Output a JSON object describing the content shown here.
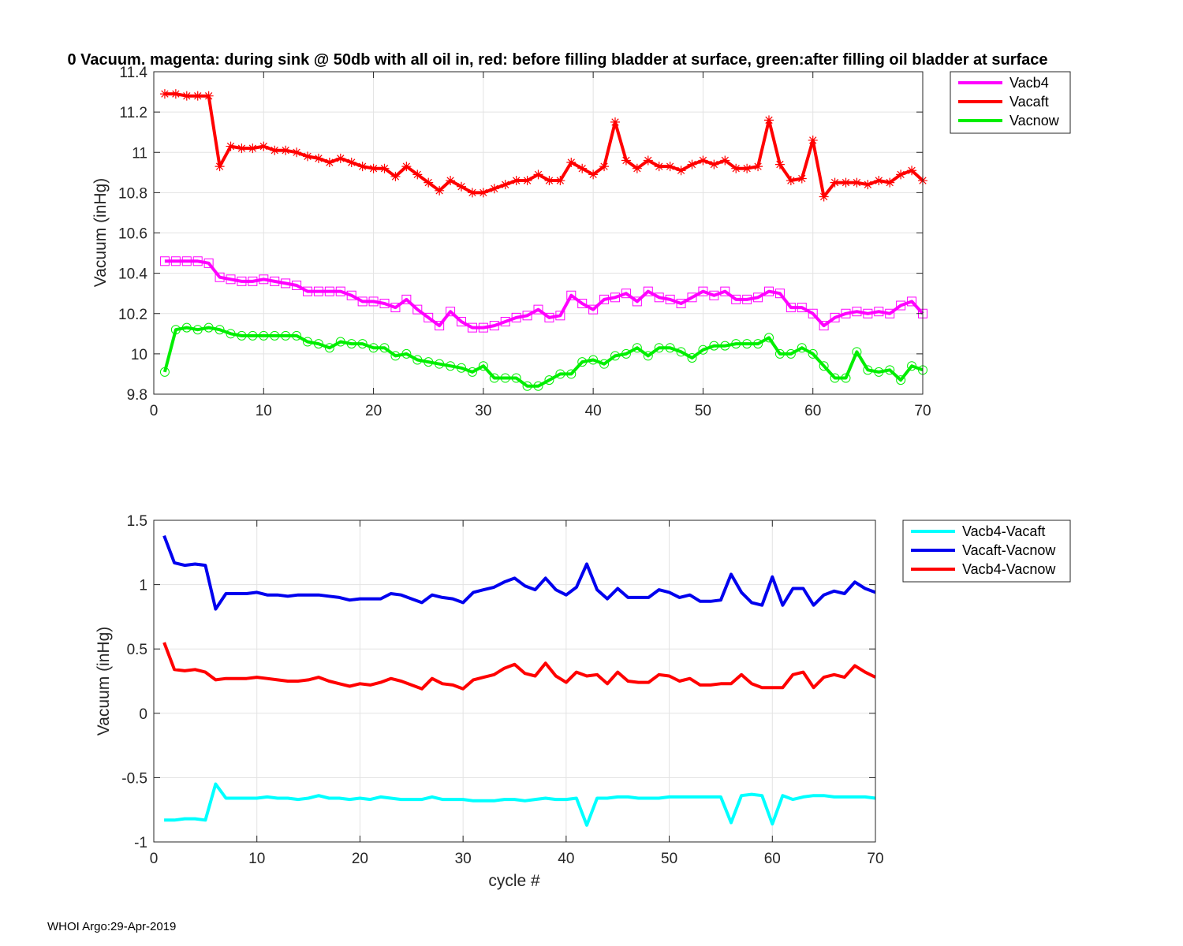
{
  "footer": "WHOI Argo:29-Apr-2019",
  "chart_data": [
    {
      "type": "line",
      "title": "0 Vacuum. magenta: during sink @ 50db with all oil in, red: before filling bladder at surface, green:after filling oil bladder at surface",
      "xlabel": "",
      "ylabel": "Vacuum (inHg)",
      "xlim": [
        0,
        70
      ],
      "ylim": [
        9.8,
        11.4
      ],
      "xticks": [
        0,
        10,
        20,
        30,
        40,
        50,
        60,
        70
      ],
      "yticks": [
        9.8,
        10,
        10.2,
        10.4,
        10.6,
        10.8,
        11,
        11.2,
        11.4
      ],
      "ytick_labels": [
        "9.8",
        "10",
        "10.2",
        "10.4",
        "10.6",
        "10.8",
        "11",
        "11.2",
        "11.4"
      ],
      "grid": true,
      "legend_position": "outside-top-right",
      "series": [
        {
          "name": "Vacb4",
          "color": "#ff00ff",
          "marker": "square",
          "values": [
            10.46,
            10.46,
            10.46,
            10.46,
            10.45,
            10.38,
            10.37,
            10.36,
            10.36,
            10.37,
            10.36,
            10.35,
            10.34,
            10.31,
            10.31,
            10.31,
            10.31,
            10.29,
            10.26,
            10.26,
            10.25,
            10.23,
            10.27,
            10.22,
            10.18,
            10.14,
            10.21,
            10.16,
            10.13,
            10.13,
            10.14,
            10.16,
            10.18,
            10.19,
            10.22,
            10.18,
            10.19,
            10.29,
            10.25,
            10.22,
            10.27,
            10.28,
            10.3,
            10.26,
            10.31,
            10.28,
            10.27,
            10.25,
            10.28,
            10.31,
            10.29,
            10.31,
            10.27,
            10.27,
            10.28,
            10.31,
            10.3,
            10.23,
            10.23,
            10.2,
            10.14,
            10.18,
            10.2,
            10.21,
            10.2,
            10.21,
            10.2,
            10.24,
            10.26,
            10.2
          ]
        },
        {
          "name": "Vacaft",
          "color": "#ff0000",
          "marker": "star",
          "values": [
            11.29,
            11.29,
            11.28,
            11.28,
            11.28,
            10.93,
            11.03,
            11.02,
            11.02,
            11.03,
            11.01,
            11.01,
            11.0,
            10.98,
            10.97,
            10.95,
            10.97,
            10.95,
            10.93,
            10.92,
            10.92,
            10.88,
            10.93,
            10.89,
            10.85,
            10.81,
            10.86,
            10.83,
            10.8,
            10.8,
            10.82,
            10.84,
            10.86,
            10.86,
            10.89,
            10.86,
            10.86,
            10.95,
            10.92,
            10.89,
            10.93,
            11.15,
            10.96,
            10.92,
            10.96,
            10.93,
            10.93,
            10.91,
            10.94,
            10.96,
            10.94,
            10.96,
            10.92,
            10.92,
            10.93,
            11.16,
            10.94,
            10.86,
            10.87,
            11.06,
            10.78,
            10.85,
            10.85,
            10.85,
            10.84,
            10.86,
            10.85,
            10.89,
            10.91,
            10.86
          ]
        },
        {
          "name": "Vacnow",
          "color": "#00ee00",
          "marker": "circle",
          "values": [
            9.91,
            10.12,
            10.13,
            10.12,
            10.13,
            10.12,
            10.1,
            10.09,
            10.09,
            10.09,
            10.09,
            10.09,
            10.09,
            10.06,
            10.05,
            10.03,
            10.06,
            10.05,
            10.05,
            10.03,
            10.03,
            9.99,
            10.0,
            9.97,
            9.96,
            9.95,
            9.94,
            9.93,
            9.91,
            9.94,
            9.88,
            9.88,
            9.88,
            9.84,
            9.84,
            9.87,
            9.9,
            9.9,
            9.96,
            9.97,
            9.95,
            9.99,
            10.0,
            10.03,
            9.99,
            10.03,
            10.03,
            10.01,
            9.98,
            10.02,
            10.04,
            10.04,
            10.05,
            10.05,
            10.05,
            10.08,
            10.0,
            10.0,
            10.03,
            10.0,
            9.94,
            9.88,
            9.88,
            10.01,
            9.92,
            9.91,
            9.92,
            9.87,
            9.94,
            9.92
          ]
        }
      ]
    },
    {
      "type": "line",
      "title": "",
      "xlabel": "cycle #",
      "ylabel": "Vacuum (inHg)",
      "xlim": [
        0,
        70
      ],
      "ylim": [
        -1,
        1.5
      ],
      "xticks": [
        0,
        10,
        20,
        30,
        40,
        50,
        60,
        70
      ],
      "yticks": [
        -1,
        -0.5,
        0,
        0.5,
        1,
        1.5
      ],
      "ytick_labels": [
        "-1",
        "-0.5",
        "0",
        "0.5",
        "1",
        "1.5"
      ],
      "grid": true,
      "legend_position": "outside-top-right",
      "series": [
        {
          "name": "Vacb4-Vacaft",
          "color": "#00ffff",
          "marker": "none",
          "values": [
            -0.83,
            -0.83,
            -0.82,
            -0.82,
            -0.83,
            -0.55,
            -0.66,
            -0.66,
            -0.66,
            -0.66,
            -0.65,
            -0.66,
            -0.66,
            -0.67,
            -0.66,
            -0.64,
            -0.66,
            -0.66,
            -0.67,
            -0.66,
            -0.67,
            -0.65,
            -0.66,
            -0.67,
            -0.67,
            -0.67,
            -0.65,
            -0.67,
            -0.67,
            -0.67,
            -0.68,
            -0.68,
            -0.68,
            -0.67,
            -0.67,
            -0.68,
            -0.67,
            -0.66,
            -0.67,
            -0.67,
            -0.66,
            -0.87,
            -0.66,
            -0.66,
            -0.65,
            -0.65,
            -0.66,
            -0.66,
            -0.66,
            -0.65,
            -0.65,
            -0.65,
            -0.65,
            -0.65,
            -0.65,
            -0.85,
            -0.64,
            -0.63,
            -0.64,
            -0.86,
            -0.64,
            -0.67,
            -0.65,
            -0.64,
            -0.64,
            -0.65,
            -0.65,
            -0.65,
            -0.65,
            -0.66
          ]
        },
        {
          "name": "Vacaft-Vacnow",
          "color": "#0000ee",
          "marker": "none",
          "values": [
            1.38,
            1.17,
            1.15,
            1.16,
            1.15,
            0.81,
            0.93,
            0.93,
            0.93,
            0.94,
            0.92,
            0.92,
            0.91,
            0.92,
            0.92,
            0.92,
            0.91,
            0.9,
            0.88,
            0.89,
            0.89,
            0.89,
            0.93,
            0.92,
            0.89,
            0.86,
            0.92,
            0.9,
            0.89,
            0.86,
            0.94,
            0.96,
            0.98,
            1.02,
            1.05,
            0.99,
            0.96,
            1.05,
            0.96,
            0.92,
            0.98,
            1.16,
            0.96,
            0.89,
            0.97,
            0.9,
            0.9,
            0.9,
            0.96,
            0.94,
            0.9,
            0.92,
            0.87,
            0.87,
            0.88,
            1.08,
            0.94,
            0.86,
            0.84,
            1.06,
            0.84,
            0.97,
            0.97,
            0.84,
            0.92,
            0.95,
            0.93,
            1.02,
            0.97,
            0.94
          ]
        },
        {
          "name": "Vacb4-Vacnow",
          "color": "#ff0000",
          "marker": "none",
          "values": [
            0.55,
            0.34,
            0.33,
            0.34,
            0.32,
            0.26,
            0.27,
            0.27,
            0.27,
            0.28,
            0.27,
            0.26,
            0.25,
            0.25,
            0.26,
            0.28,
            0.25,
            0.23,
            0.21,
            0.23,
            0.22,
            0.24,
            0.27,
            0.25,
            0.22,
            0.19,
            0.27,
            0.23,
            0.22,
            0.19,
            0.26,
            0.28,
            0.3,
            0.35,
            0.38,
            0.31,
            0.29,
            0.39,
            0.29,
            0.24,
            0.32,
            0.29,
            0.3,
            0.23,
            0.32,
            0.25,
            0.24,
            0.24,
            0.3,
            0.29,
            0.25,
            0.27,
            0.22,
            0.22,
            0.23,
            0.23,
            0.3,
            0.23,
            0.2,
            0.2,
            0.2,
            0.3,
            0.32,
            0.2,
            0.28,
            0.3,
            0.28,
            0.37,
            0.32,
            0.28
          ]
        }
      ]
    }
  ]
}
